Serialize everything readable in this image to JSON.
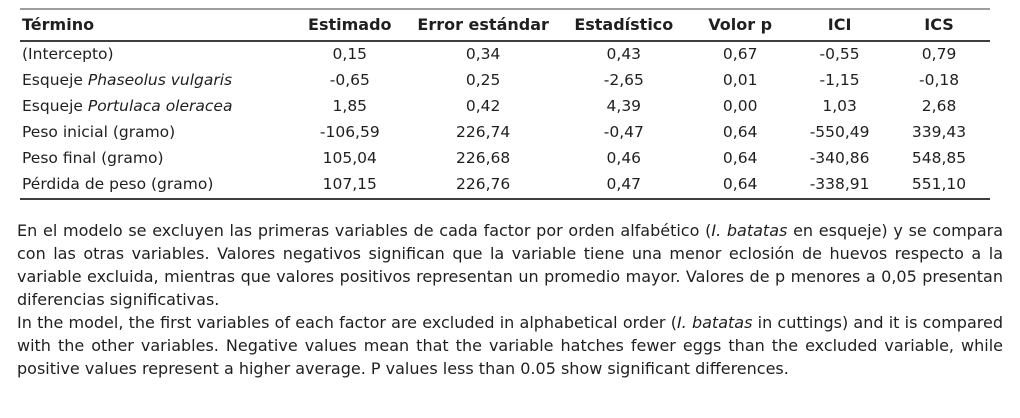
{
  "colors": {
    "background": "#ffffff",
    "text": "#1f1f1f",
    "rule_light": "#9e9e9e",
    "rule_dark": "#3f3f3f"
  },
  "table": {
    "columns": [
      {
        "label": "Término"
      },
      {
        "label": "Estimado"
      },
      {
        "label": "Error estándar"
      },
      {
        "label": "Estadístico"
      },
      {
        "label": "Volor p"
      },
      {
        "label": "ICI"
      },
      {
        "label": "ICS"
      }
    ],
    "rows": [
      {
        "term": [
          {
            "text": "(Intercepto)"
          }
        ],
        "values": [
          "0,15",
          "0,34",
          "0,43",
          "0,67",
          "-0,55",
          "0,79"
        ]
      },
      {
        "term": [
          {
            "text": "Esqueje "
          },
          {
            "text": "Phaseolus vulgaris",
            "italic": true
          }
        ],
        "values": [
          "-0,65",
          "0,25",
          "-2,65",
          "0,01",
          "-1,15",
          "-0,18"
        ]
      },
      {
        "term": [
          {
            "text": "Esqueje "
          },
          {
            "text": "Portulaca oleracea",
            "italic": true
          }
        ],
        "values": [
          "1,85",
          "0,42",
          "4,39",
          "0,00",
          "1,03",
          "2,68"
        ]
      },
      {
        "term": [
          {
            "text": "Peso inicial (gramo)"
          }
        ],
        "values": [
          "-106,59",
          "226,74",
          "-0,47",
          "0,64",
          "-550,49",
          "339,43"
        ]
      },
      {
        "term": [
          {
            "text": "Peso final (gramo)"
          }
        ],
        "values": [
          "105,04",
          "226,68",
          "0,46",
          "0,64",
          "-340,86",
          "548,85"
        ]
      },
      {
        "term": [
          {
            "text": "Pérdida de peso (gramo)"
          }
        ],
        "values": [
          "107,15",
          "226,76",
          "0,47",
          "0,64",
          "-338,91",
          "551,10"
        ]
      }
    ]
  },
  "notes": {
    "spanish_segments": [
      {
        "text": "En el modelo se excluyen las primeras variables de cada factor por orden alfabético ("
      },
      {
        "text": "I. batatas",
        "italic": true
      },
      {
        "text": " en esqueje) y se compara con las otras variables. Valores negativos significan que la variable tiene una menor eclosión de huevos respecto a la variable excluida, mientras que valores positivos representan un promedio mayor. Valores de p menores a 0,05 presentan diferencias significativas."
      }
    ],
    "english_segments": [
      {
        "text": "In the model, the first variables of each factor are excluded in alphabetical order ("
      },
      {
        "text": "I. batatas",
        "italic": true
      },
      {
        "text": " in cuttings) and it is compared with the other variables. Negative values mean that the variable hatches fewer eggs than the excluded variable, while positive values represent a higher average. P values less than 0.05 show significant differences."
      }
    ]
  }
}
